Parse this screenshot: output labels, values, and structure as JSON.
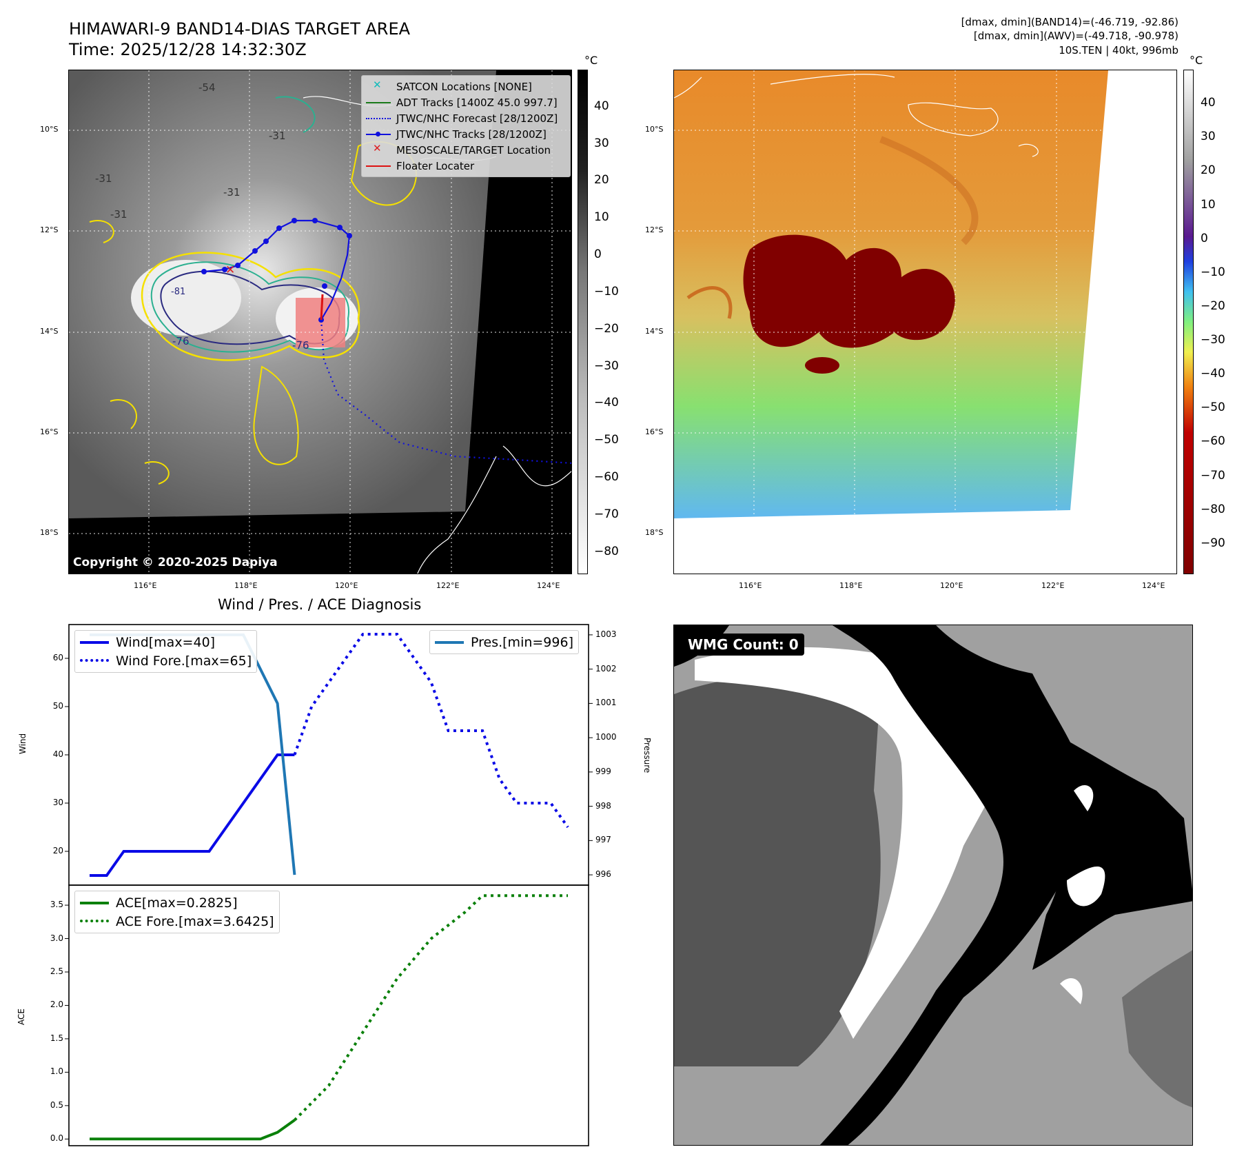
{
  "header": {
    "title_line1": "HIMAWARI-9 BAND14-DIAS TARGET AREA",
    "title_line2": "Time: 2025/12/28 14:32:30Z",
    "info_line1": "[dmax, dmin](BAND14)=(-46.719, -92.86)",
    "info_line2": "[dmax, dmin](AWV)=(-49.718, -90.978)",
    "info_line3": "10S.TEN | 40kt, 996mb"
  },
  "map": {
    "lat_ticks": [
      "10°S",
      "12°S",
      "14°S",
      "16°S",
      "18°S"
    ],
    "lon_ticks": [
      "116°E",
      "118°E",
      "120°E",
      "122°E",
      "124°E"
    ],
    "copyright": "Copyright © 2020-2025 Dapiya",
    "contour_labels": [
      "-54",
      "-31",
      "-31",
      "-31",
      "-31",
      "-76",
      "-76",
      "-81"
    ],
    "colors": {
      "adt": "#1a7a1a",
      "jtwc": "#1010dd",
      "target": "#dd2020",
      "satcon": "#11bbbb",
      "floater": "#dd1111"
    },
    "legend": [
      {
        "label": "SATCON Locations [NONE]",
        "icon": "x-marker-cyan"
      },
      {
        "label": "ADT Tracks [1400Z 45.0 997.7]",
        "icon": "line-green"
      },
      {
        "label": "JTWC/NHC Forecast [28/1200Z]",
        "icon": "dotted-blue"
      },
      {
        "label": "JTWC/NHC Tracks [28/1200Z]",
        "icon": "line-dot-blue"
      },
      {
        "label": "MESOSCALE/TARGET Location",
        "icon": "x-marker-red"
      },
      {
        "label": "Floater Locater",
        "icon": "line-red"
      }
    ],
    "colorbar1": {
      "unit": "°C",
      "ticks": [
        "40",
        "30",
        "20",
        "10",
        "0",
        "−10",
        "−20",
        "−30",
        "−40",
        "−50",
        "−60",
        "−70",
        "−80"
      ]
    },
    "colorbar2": {
      "unit": "°C",
      "ticks": [
        "40",
        "30",
        "20",
        "10",
        "0",
        "−10",
        "−20",
        "−30",
        "−40",
        "−50",
        "−60",
        "−70",
        "−80",
        "−90"
      ]
    }
  },
  "chart_data": [
    {
      "type": "line",
      "title": "Wind / Pres. / ACE Diagnosis",
      "ylabel": "Wind",
      "y2label": "Pressure",
      "ylim": [
        13,
        67
      ],
      "y2lim": [
        995.7,
        1003.3
      ],
      "yticks": [
        "20",
        "30",
        "40",
        "50",
        "60"
      ],
      "y2ticks": [
        "996",
        "997",
        "998",
        "999",
        "1000",
        "1001",
        "1002",
        "1003"
      ],
      "series": [
        {
          "name": "Wind[max=40]",
          "x": [
            0,
            1,
            2,
            3,
            4,
            5,
            6,
            7,
            8,
            9,
            10,
            11,
            12
          ],
          "y": [
            15,
            15,
            20,
            20,
            20,
            20,
            20,
            20,
            25,
            30,
            35,
            40,
            40
          ]
        },
        {
          "name": "Wind Fore.[max=65]",
          "x": [
            12,
            13,
            14,
            15,
            16,
            17,
            18,
            19,
            20,
            21,
            22,
            23,
            24,
            25,
            26,
            27,
            28
          ],
          "y": [
            40,
            50,
            55,
            60,
            65,
            65,
            65,
            60,
            55,
            45,
            45,
            45,
            35,
            30,
            30,
            30,
            25
          ]
        },
        {
          "name": "Pres.[min=996]",
          "axis": "y2",
          "x": [
            0,
            5,
            9,
            11,
            12
          ],
          "y": [
            1003,
            1003,
            1003,
            1001,
            996
          ]
        }
      ]
    },
    {
      "type": "line",
      "ylabel": "ACE",
      "ylim": [
        -0.1,
        3.8
      ],
      "yticks": [
        "0.0",
        "0.5",
        "1.0",
        "1.5",
        "2.0",
        "2.5",
        "3.0",
        "3.5"
      ],
      "series": [
        {
          "name": "ACE[max=0.2825]",
          "x": [
            0,
            10,
            11,
            12
          ],
          "y": [
            0,
            0,
            0.1,
            0.2825
          ]
        },
        {
          "name": "ACE Fore.[max=3.6425]",
          "x": [
            12,
            14,
            16,
            18,
            20,
            21,
            22,
            23,
            24,
            25,
            26,
            27,
            28
          ],
          "y": [
            0.2825,
            0.8,
            1.6,
            2.4,
            3.0,
            3.2,
            3.4,
            3.6425,
            3.6425,
            3.6425,
            3.6425,
            3.6425,
            3.6425
          ]
        }
      ]
    }
  ],
  "wmg": {
    "label": "WMG Count: 0"
  }
}
